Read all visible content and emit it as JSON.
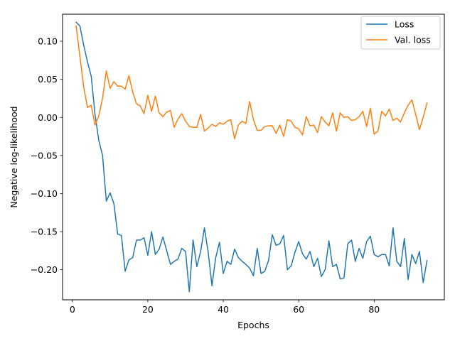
{
  "chart_data": {
    "type": "line",
    "xlabel": "Epochs",
    "ylabel": "Negative log-likelihood",
    "xlim": [
      -2.6,
      98.6
    ],
    "ylim": [
      -0.2395,
      0.1355
    ],
    "xticks": [
      0,
      20,
      40,
      60,
      80
    ],
    "yticks": [
      -0.2,
      -0.15,
      -0.1,
      -0.05,
      0.0,
      0.05,
      0.1
    ],
    "ytick_labels": [
      "−0.20",
      "−0.15",
      "−0.10",
      "−0.05",
      "0.00",
      "0.05",
      "0.10"
    ],
    "grid": false,
    "legend": "top-right",
    "x": [
      1,
      2,
      3,
      4,
      5,
      6,
      7,
      8,
      9,
      10,
      11,
      12,
      13,
      14,
      15,
      16,
      17,
      18,
      19,
      20,
      21,
      22,
      23,
      24,
      25,
      26,
      27,
      28,
      29,
      30,
      31,
      32,
      33,
      34,
      35,
      36,
      37,
      38,
      39,
      40,
      41,
      42,
      43,
      44,
      45,
      46,
      47,
      48,
      49,
      50,
      51,
      52,
      53,
      54,
      55,
      56,
      57,
      58,
      59,
      60,
      61,
      62,
      63,
      64,
      65,
      66,
      67,
      68,
      69,
      70,
      71,
      72,
      73,
      74,
      75,
      76,
      77,
      78,
      79,
      80,
      81,
      82,
      83,
      84,
      85,
      86,
      87,
      88,
      89,
      90,
      91,
      92,
      93,
      94
    ],
    "series": [
      {
        "name": "Loss",
        "color": "#1f77b4",
        "values": [
          0.125,
          0.12,
          0.095,
          0.073,
          0.054,
          0.004,
          -0.03,
          -0.05,
          -0.11,
          -0.099,
          -0.113,
          -0.153,
          -0.155,
          -0.202,
          -0.187,
          -0.184,
          -0.161,
          -0.161,
          -0.158,
          -0.181,
          -0.15,
          -0.18,
          -0.173,
          -0.157,
          -0.175,
          -0.193,
          -0.189,
          -0.186,
          -0.172,
          -0.176,
          -0.229,
          -0.161,
          -0.196,
          -0.176,
          -0.145,
          -0.177,
          -0.221,
          -0.184,
          -0.164,
          -0.205,
          -0.189,
          -0.193,
          -0.173,
          -0.184,
          -0.189,
          -0.193,
          -0.198,
          -0.208,
          -0.172,
          -0.205,
          -0.202,
          -0.188,
          -0.154,
          -0.168,
          -0.166,
          -0.155,
          -0.2,
          -0.195,
          -0.177,
          -0.163,
          -0.179,
          -0.186,
          -0.176,
          -0.196,
          -0.185,
          -0.209,
          -0.2,
          -0.162,
          -0.196,
          -0.193,
          -0.212,
          -0.211,
          -0.166,
          -0.161,
          -0.189,
          -0.172,
          -0.185,
          -0.163,
          -0.156,
          -0.18,
          -0.183,
          -0.18,
          -0.18,
          -0.195,
          -0.145,
          -0.189,
          -0.196,
          -0.159,
          -0.213,
          -0.18,
          -0.192,
          -0.176,
          -0.217,
          -0.188
        ]
      },
      {
        "name": "Val. loss",
        "color": "#ff7f0e",
        "values": [
          0.12,
          0.08,
          0.04,
          0.013,
          0.016,
          -0.01,
          0.002,
          0.025,
          0.061,
          0.038,
          0.047,
          0.041,
          0.041,
          0.037,
          0.055,
          0.033,
          0.018,
          0.015,
          0.005,
          0.029,
          0.008,
          0.028,
          0.006,
          0.001,
          0.007,
          0.009,
          -0.013,
          -0.002,
          0.005,
          -0.005,
          -0.012,
          -0.013,
          -0.013,
          0.004,
          -0.018,
          -0.014,
          -0.009,
          -0.012,
          -0.007,
          -0.009,
          -0.005,
          -0.003,
          -0.028,
          -0.01,
          -0.005,
          -0.008,
          0.021,
          -0.003,
          -0.017,
          -0.017,
          -0.012,
          -0.011,
          -0.011,
          -0.021,
          -0.01,
          -0.025,
          -0.003,
          -0.005,
          -0.013,
          -0.015,
          -0.023,
          0.001,
          -0.011,
          -0.01,
          -0.02,
          0.001,
          -0.006,
          -0.011,
          0.006,
          -0.018,
          0.006,
          0.0,
          0.001,
          -0.004,
          -0.003,
          0.001,
          0.008,
          -0.012,
          0.012,
          -0.022,
          -0.018,
          0.008,
          0.002,
          0.011,
          -0.004,
          -0.001,
          -0.006,
          0.006,
          0.016,
          0.023,
          0.004,
          -0.016,
          0.0,
          0.019
        ]
      }
    ]
  }
}
